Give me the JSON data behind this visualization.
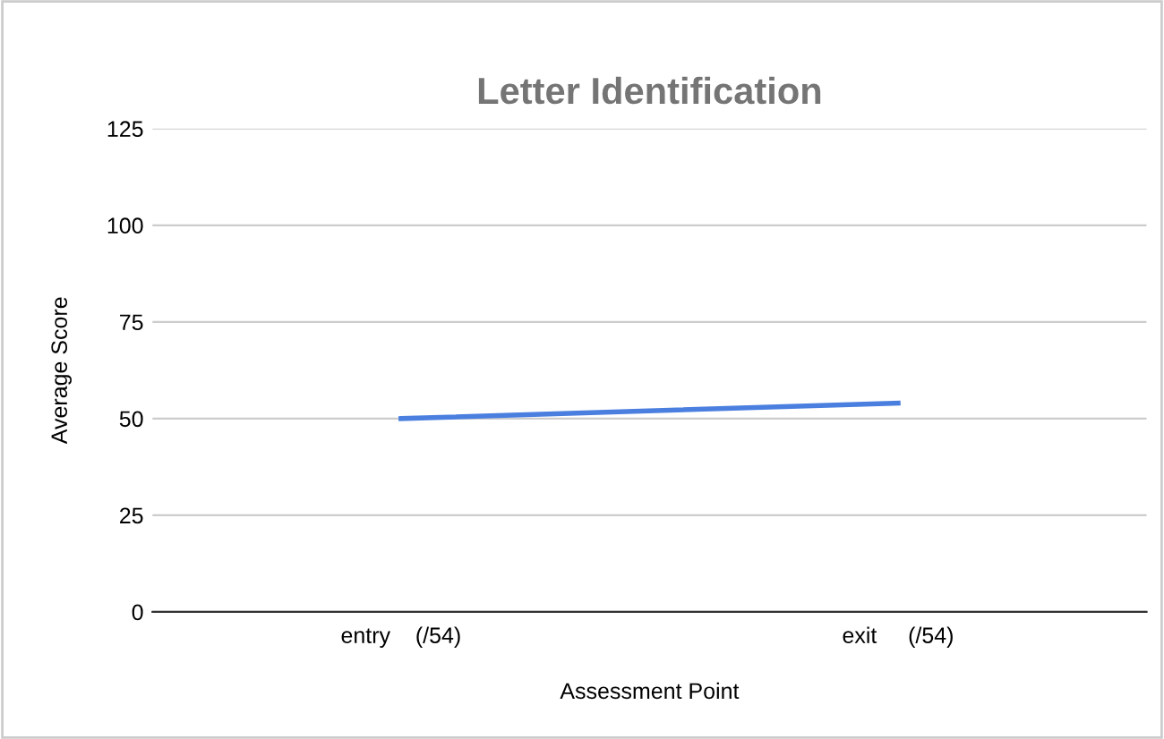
{
  "chart_data": {
    "type": "line",
    "title": "Letter Identification",
    "xlabel": "Assessment Point",
    "ylabel": "Average Score",
    "categories": [
      "entry    (/54)",
      "exit     (/54)"
    ],
    "series": [
      {
        "color": "#4a7fe0",
        "values": [
          50,
          54
        ]
      }
    ],
    "ylim": [
      0,
      125
    ],
    "yticks": [
      0,
      25,
      50,
      75,
      100,
      125
    ],
    "grid": "y",
    "marker": "none",
    "line_style": "solid"
  }
}
